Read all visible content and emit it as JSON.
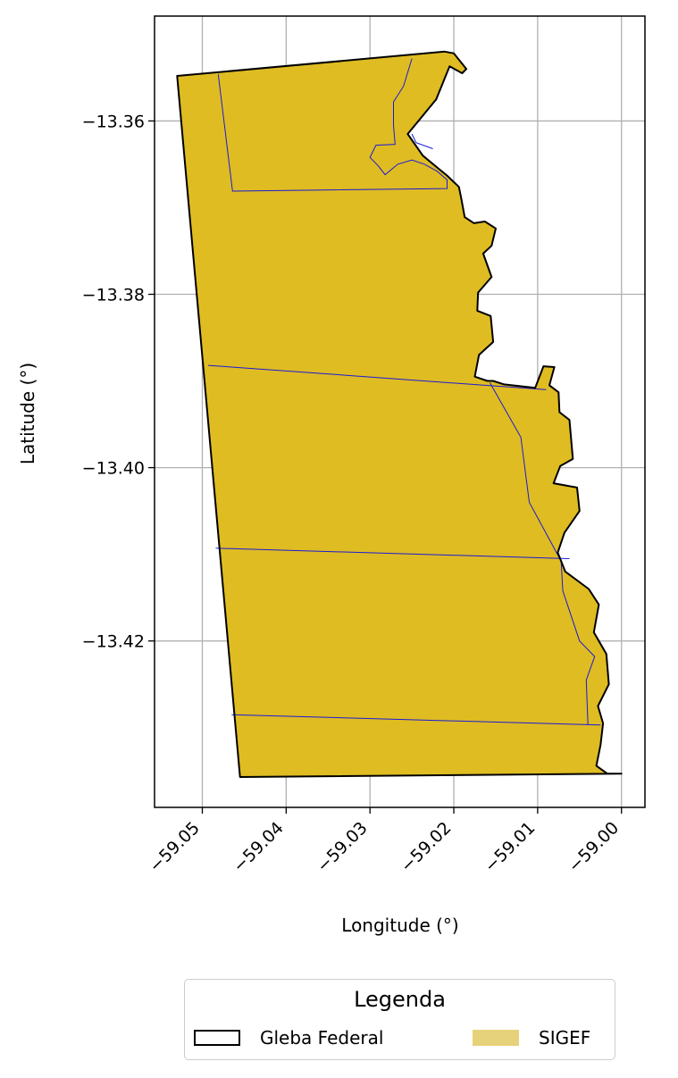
{
  "chart_data": {
    "type": "map",
    "xlabel": "Longitude (°)",
    "ylabel": "Latitude (°)",
    "xlim": [
      -59.0557,
      -58.9972
    ],
    "ylim": [
      -13.4392,
      -13.3479
    ],
    "x_ticks": [
      -59.05,
      -59.04,
      -59.03,
      -59.02,
      -59.01,
      -59.0
    ],
    "x_tick_labels": [
      "−59.05",
      "−59.04",
      "−59.03",
      "−59.02",
      "−59.01",
      "−59.00"
    ],
    "y_ticks": [
      -13.36,
      -13.38,
      -13.4,
      -13.42
    ],
    "y_tick_labels": [
      "−13.36",
      "−13.38",
      "−13.40",
      "−13.42"
    ],
    "grid": true,
    "layers": [
      {
        "name": "SIGEF",
        "role": "fill",
        "color": "#dfbc22",
        "legend_color": "#e6d27a"
      },
      {
        "name": "Gleba Federal",
        "role": "outline",
        "color": "#000000"
      },
      {
        "name": "parcel-boundaries",
        "role": "lines",
        "color": "#1a1ad8"
      }
    ],
    "boundary": [
      [
        -59.053,
        -13.3548
      ],
      [
        -59.0211,
        -13.352
      ],
      [
        -59.02,
        -13.3522
      ],
      [
        -59.0185,
        -13.354
      ],
      [
        -59.019,
        -13.3545
      ],
      [
        -59.0205,
        -13.3537
      ],
      [
        -59.0221,
        -13.3575
      ],
      [
        -59.0238,
        -13.3595
      ],
      [
        -59.0255,
        -13.3615
      ],
      [
        -59.0237,
        -13.364
      ],
      [
        -59.0222,
        -13.3652
      ],
      [
        -59.0208,
        -13.3663
      ],
      [
        -59.0194,
        -13.3676
      ],
      [
        -59.0191,
        -13.369
      ],
      [
        -59.0187,
        -13.3711
      ],
      [
        -59.0176,
        -13.3718
      ],
      [
        -59.0163,
        -13.3716
      ],
      [
        -59.015,
        -13.3724
      ],
      [
        -59.0155,
        -13.3744
      ],
      [
        -59.0165,
        -13.3753
      ],
      [
        -59.0155,
        -13.378
      ],
      [
        -59.0171,
        -13.3798
      ],
      [
        -59.0172,
        -13.3819
      ],
      [
        -59.0156,
        -13.3825
      ],
      [
        -59.0153,
        -13.3855
      ],
      [
        -59.017,
        -13.387
      ],
      [
        -59.0175,
        -13.3895
      ],
      [
        -59.016,
        -13.39
      ],
      [
        -59.0153,
        -13.39
      ],
      [
        -59.014,
        -13.3904
      ],
      [
        -59.0103,
        -13.3908
      ],
      [
        -59.0093,
        -13.3883
      ],
      [
        -59.008,
        -13.3884
      ],
      [
        -59.0086,
        -13.3905
      ],
      [
        -59.0075,
        -13.3913
      ],
      [
        -59.0074,
        -13.3936
      ],
      [
        -59.0062,
        -13.3945
      ],
      [
        -59.0058,
        -13.399
      ],
      [
        -59.0073,
        -13.3998
      ],
      [
        -59.0081,
        -13.4018
      ],
      [
        -59.0053,
        -13.4023
      ],
      [
        -59.005,
        -13.405
      ],
      [
        -59.0068,
        -13.4075
      ],
      [
        -59.0076,
        -13.4098
      ],
      [
        -59.0067,
        -13.412
      ],
      [
        -59.0039,
        -13.414
      ],
      [
        -59.0027,
        -13.4158
      ],
      [
        -59.0033,
        -13.419
      ],
      [
        -59.0018,
        -13.4215
      ],
      [
        -59.0015,
        -13.425
      ],
      [
        -59.0028,
        -13.4275
      ],
      [
        -59.0022,
        -13.4295
      ],
      [
        -59.0025,
        -13.432
      ],
      [
        -59.003,
        -13.4344
      ],
      [
        -59.0017,
        -13.4353
      ],
      [
        -59.0,
        -13.4353
      ],
      [
        -59.0455,
        -13.4357
      ]
    ],
    "parcel_lines": [
      [
        [
          -59.0481,
          -13.3546
        ],
        [
          -59.0464,
          -13.3681
        ],
        [
          -59.0208,
          -13.3678
        ],
        [
          -59.0208,
          -13.3668
        ],
        [
          -59.022,
          -13.3658
        ],
        [
          -59.0235,
          -13.365
        ],
        [
          -59.025,
          -13.3645
        ],
        [
          -59.0267,
          -13.365
        ],
        [
          -59.0282,
          -13.3662
        ],
        [
          -59.029,
          -13.3652
        ],
        [
          -59.03,
          -13.3642
        ],
        [
          -59.0293,
          -13.3628
        ],
        [
          -59.027,
          -13.3627
        ],
        [
          -59.0272,
          -13.3605
        ],
        [
          -59.0272,
          -13.3578
        ],
        [
          -59.026,
          -13.356
        ],
        [
          -59.025,
          -13.3528
        ]
      ],
      [
        [
          -59.025,
          -13.3615
        ],
        [
          -59.0245,
          -13.3625
        ],
        [
          -59.0225,
          -13.3632
        ]
      ],
      [
        [
          -59.0493,
          -13.3882
        ],
        [
          -59.009,
          -13.391
        ]
      ],
      [
        [
          -59.0157,
          -13.3902
        ],
        [
          -59.012,
          -13.3965
        ],
        [
          -59.011,
          -13.404
        ],
        [
          -59.0072,
          -13.4108
        ],
        [
          -59.007,
          -13.4142
        ],
        [
          -59.005,
          -13.42
        ],
        [
          -59.0032,
          -13.4218
        ],
        [
          -59.0042,
          -13.4245
        ],
        [
          -59.004,
          -13.4297
        ]
      ],
      [
        [
          -59.0484,
          -13.4093
        ],
        [
          -59.0062,
          -13.4105
        ]
      ],
      [
        [
          -59.0465,
          -13.4285
        ],
        [
          -59.0025,
          -13.4297
        ]
      ]
    ]
  },
  "legend": {
    "title": "Legenda",
    "items": [
      {
        "label": "Gleba Federal"
      },
      {
        "label": "SIGEF"
      }
    ]
  }
}
